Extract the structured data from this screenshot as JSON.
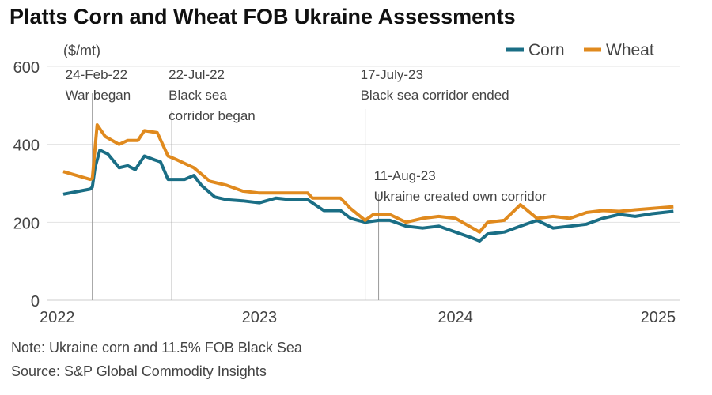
{
  "title": "Platts Corn and Wheat FOB Ukraine Assessments",
  "note": "Note: Ukraine corn and 11.5% FOB Black Sea",
  "source": "Source: S&P Global Commodity Insights",
  "chart_data": {
    "type": "line",
    "ylabel": "($/mt)",
    "ylim": [
      0,
      600
    ],
    "yticks": [
      "0",
      "200",
      "400",
      "600"
    ],
    "xlim": [
      "2022-01-01",
      "2025-02-15"
    ],
    "xticks": [
      {
        "date": "2022-01-01",
        "label": "2022"
      },
      {
        "date": "2023-01-01",
        "label": "2023"
      },
      {
        "date": "2024-01-01",
        "label": "2024"
      },
      {
        "date": "2025-01-01",
        "label": "2025"
      }
    ],
    "grid": true,
    "legend": "top-right",
    "series": [
      {
        "name": "Corn",
        "color": "#1a6e85",
        "points": [
          [
            "2022-01-01",
            272
          ],
          [
            "2022-02-20",
            285
          ],
          [
            "2022-02-24",
            290
          ],
          [
            "2022-03-01",
            340
          ],
          [
            "2022-03-10",
            385
          ],
          [
            "2022-03-25",
            375
          ],
          [
            "2022-04-15",
            340
          ],
          [
            "2022-05-01",
            345
          ],
          [
            "2022-05-15",
            335
          ],
          [
            "2022-06-01",
            370
          ],
          [
            "2022-06-20",
            360
          ],
          [
            "2022-07-01",
            355
          ],
          [
            "2022-07-15",
            310
          ],
          [
            "2022-08-15",
            310
          ],
          [
            "2022-09-01",
            320
          ],
          [
            "2022-09-15",
            295
          ],
          [
            "2022-10-10",
            265
          ],
          [
            "2022-11-01",
            258
          ],
          [
            "2022-12-01",
            255
          ],
          [
            "2023-01-01",
            250
          ],
          [
            "2023-02-01",
            262
          ],
          [
            "2023-03-01",
            258
          ],
          [
            "2023-04-01",
            258
          ],
          [
            "2023-05-01",
            230
          ],
          [
            "2023-06-01",
            230
          ],
          [
            "2023-06-20",
            210
          ],
          [
            "2023-07-17",
            200
          ],
          [
            "2023-08-11",
            205
          ],
          [
            "2023-09-01",
            205
          ],
          [
            "2023-10-01",
            190
          ],
          [
            "2023-11-01",
            185
          ],
          [
            "2023-12-01",
            190
          ],
          [
            "2024-01-01",
            175
          ],
          [
            "2024-02-01",
            160
          ],
          [
            "2024-02-15",
            152
          ],
          [
            "2024-03-01",
            170
          ],
          [
            "2024-04-01",
            175
          ],
          [
            "2024-05-01",
            190
          ],
          [
            "2024-06-01",
            205
          ],
          [
            "2024-07-01",
            185
          ],
          [
            "2024-08-01",
            190
          ],
          [
            "2024-09-01",
            195
          ],
          [
            "2024-10-01",
            210
          ],
          [
            "2024-11-01",
            220
          ],
          [
            "2024-12-01",
            215
          ],
          [
            "2025-01-01",
            222
          ],
          [
            "2025-02-10",
            228
          ]
        ]
      },
      {
        "name": "Wheat",
        "color": "#e08a1e",
        "points": [
          [
            "2022-01-01",
            330
          ],
          [
            "2022-02-20",
            310
          ],
          [
            "2022-02-24",
            312
          ],
          [
            "2022-03-05",
            450
          ],
          [
            "2022-03-20",
            420
          ],
          [
            "2022-04-15",
            400
          ],
          [
            "2022-05-01",
            410
          ],
          [
            "2022-05-20",
            410
          ],
          [
            "2022-06-01",
            435
          ],
          [
            "2022-06-25",
            430
          ],
          [
            "2022-07-15",
            370
          ],
          [
            "2022-08-01",
            360
          ],
          [
            "2022-09-01",
            340
          ],
          [
            "2022-10-01",
            305
          ],
          [
            "2022-11-01",
            295
          ],
          [
            "2022-12-01",
            280
          ],
          [
            "2023-01-01",
            275
          ],
          [
            "2023-04-01",
            275
          ],
          [
            "2023-04-10",
            262
          ],
          [
            "2023-06-01",
            262
          ],
          [
            "2023-06-20",
            235
          ],
          [
            "2023-07-17",
            205
          ],
          [
            "2023-08-01",
            220
          ],
          [
            "2023-09-01",
            220
          ],
          [
            "2023-10-01",
            200
          ],
          [
            "2023-11-01",
            210
          ],
          [
            "2023-12-01",
            215
          ],
          [
            "2024-01-01",
            210
          ],
          [
            "2024-02-15",
            175
          ],
          [
            "2024-03-01",
            200
          ],
          [
            "2024-04-01",
            205
          ],
          [
            "2024-05-01",
            245
          ],
          [
            "2024-06-01",
            210
          ],
          [
            "2024-07-01",
            215
          ],
          [
            "2024-08-01",
            210
          ],
          [
            "2024-09-01",
            225
          ],
          [
            "2024-10-01",
            230
          ],
          [
            "2024-11-01",
            228
          ],
          [
            "2024-12-01",
            232
          ],
          [
            "2025-02-10",
            240
          ]
        ]
      }
    ],
    "annotations": [
      {
        "date": "2022-02-24",
        "lines": [
          "24-Feb-22",
          "War began"
        ]
      },
      {
        "date": "2022-07-22",
        "lines": [
          "22-Jul-22",
          "Black sea",
          "corridor began"
        ]
      },
      {
        "date": "2023-07-17",
        "lines": [
          "17-July-23",
          "Black sea corridor ended"
        ]
      },
      {
        "date": "2023-08-11",
        "lines": [
          "11-Aug-23",
          "Ukraine created own corridor"
        ]
      }
    ]
  }
}
